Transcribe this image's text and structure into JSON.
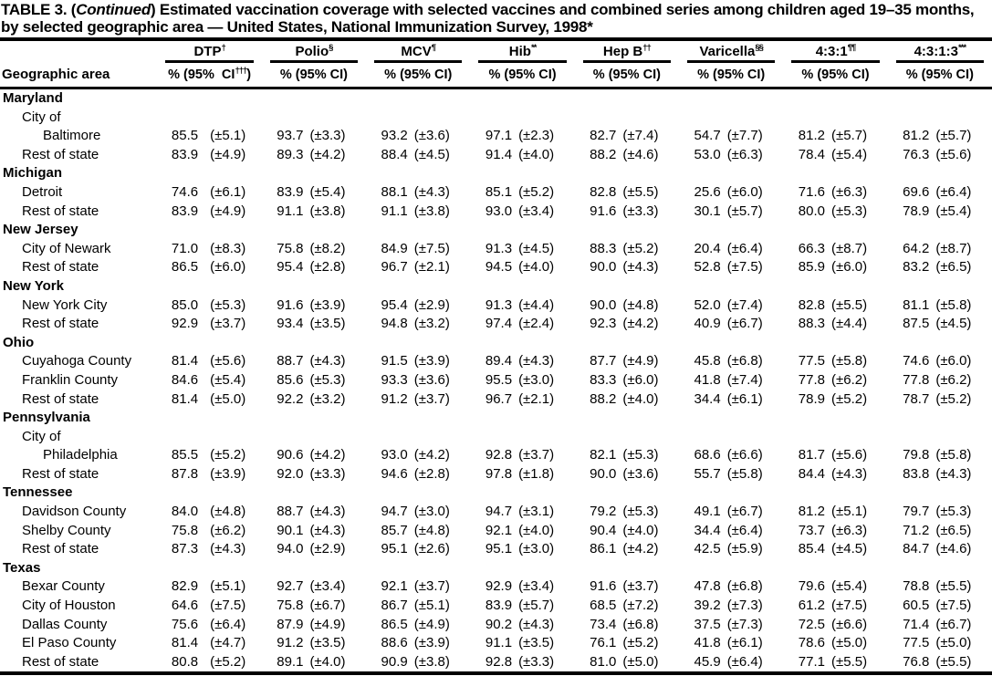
{
  "title": {
    "lead": "TABLE 3. (",
    "continued": "Continued",
    "rest": ") Estimated vaccination coverage with selected vaccines and combined series among children aged 19–35 months, by selected geographic area — United States, National Immunization Survey, 1998*"
  },
  "table": {
    "row_header": "Geographic area",
    "columns": [
      {
        "label": "DTP",
        "sup": "†",
        "sub_pre": "% (95%  CI",
        "sub_sup": "†††",
        "sub_post": ")"
      },
      {
        "label": "Polio",
        "sup": "§",
        "sub_pre": "% (95% CI",
        "sub_sup": "",
        "sub_post": ")"
      },
      {
        "label": "MCV",
        "sup": "¶",
        "sub_pre": "% (95% CI",
        "sub_sup": "",
        "sub_post": ")"
      },
      {
        "label": "Hib",
        "sup": "**",
        "sub_pre": "% (95% CI",
        "sub_sup": "",
        "sub_post": ")"
      },
      {
        "label": "Hep B",
        "sup": "††",
        "sub_pre": "% (95% CI",
        "sub_sup": "",
        "sub_post": ")"
      },
      {
        "label": "Varicella",
        "sup": "§§",
        "sub_pre": "% (95% CI",
        "sub_sup": "",
        "sub_post": ")"
      },
      {
        "label": "4:3:1",
        "sup": "¶¶",
        "sub_pre": "% (95% CI",
        "sub_sup": "",
        "sub_post": ")"
      },
      {
        "label": "4:3:1:3",
        "sup": "***",
        "sub_pre": "% (95% CI",
        "sub_sup": "",
        "sub_post": ")"
      }
    ],
    "rows": [
      {
        "label": "Maryland",
        "type": "state",
        "indent": 0
      },
      {
        "label": "City of",
        "indent": 1
      },
      {
        "label": "Baltimore",
        "indent": 2,
        "values": [
          [
            "85.5",
            "(±5.1)"
          ],
          [
            "93.7",
            "(±3.3)"
          ],
          [
            "93.2",
            "(±3.6)"
          ],
          [
            "97.1",
            "(±2.3)"
          ],
          [
            "82.7",
            "(±7.4)"
          ],
          [
            "54.7",
            "(±7.7)"
          ],
          [
            "81.2",
            "(±5.7)"
          ],
          [
            "81.2",
            "(±5.7)"
          ]
        ]
      },
      {
        "label": "Rest of state",
        "indent": 1,
        "values": [
          [
            "83.9",
            "(±4.9)"
          ],
          [
            "89.3",
            "(±4.2)"
          ],
          [
            "88.4",
            "(±4.5)"
          ],
          [
            "91.4",
            "(±4.0)"
          ],
          [
            "88.2",
            "(±4.6)"
          ],
          [
            "53.0",
            "(±6.3)"
          ],
          [
            "78.4",
            "(±5.4)"
          ],
          [
            "76.3",
            "(±5.6)"
          ]
        ]
      },
      {
        "label": "Michigan",
        "type": "state",
        "indent": 0
      },
      {
        "label": "Detroit",
        "indent": 1,
        "values": [
          [
            "74.6",
            "(±6.1)"
          ],
          [
            "83.9",
            "(±5.4)"
          ],
          [
            "88.1",
            "(±4.3)"
          ],
          [
            "85.1",
            "(±5.2)"
          ],
          [
            "82.8",
            "(±5.5)"
          ],
          [
            "25.6",
            "(±6.0)"
          ],
          [
            "71.6",
            "(±6.3)"
          ],
          [
            "69.6",
            "(±6.4)"
          ]
        ]
      },
      {
        "label": "Rest of state",
        "indent": 1,
        "values": [
          [
            "83.9",
            "(±4.9)"
          ],
          [
            "91.1",
            "(±3.8)"
          ],
          [
            "91.1",
            "(±3.8)"
          ],
          [
            "93.0",
            "(±3.4)"
          ],
          [
            "91.6",
            "(±3.3)"
          ],
          [
            "30.1",
            "(±5.7)"
          ],
          [
            "80.0",
            "(±5.3)"
          ],
          [
            "78.9",
            "(±5.4)"
          ]
        ]
      },
      {
        "label": "New Jersey",
        "type": "state",
        "indent": 0
      },
      {
        "label": "City of Newark",
        "indent": 1,
        "values": [
          [
            "71.0",
            "(±8.3)"
          ],
          [
            "75.8",
            "(±8.2)"
          ],
          [
            "84.9",
            "(±7.5)"
          ],
          [
            "91.3",
            "(±4.5)"
          ],
          [
            "88.3",
            "(±5.2)"
          ],
          [
            "20.4",
            "(±6.4)"
          ],
          [
            "66.3",
            "(±8.7)"
          ],
          [
            "64.2",
            "(±8.7)"
          ]
        ]
      },
      {
        "label": "Rest of state",
        "indent": 1,
        "values": [
          [
            "86.5",
            "(±6.0)"
          ],
          [
            "95.4",
            "(±2.8)"
          ],
          [
            "96.7",
            "(±2.1)"
          ],
          [
            "94.5",
            "(±4.0)"
          ],
          [
            "90.0",
            "(±4.3)"
          ],
          [
            "52.8",
            "(±7.5)"
          ],
          [
            "85.9",
            "(±6.0)"
          ],
          [
            "83.2",
            "(±6.5)"
          ]
        ]
      },
      {
        "label": "New York",
        "type": "state",
        "indent": 0
      },
      {
        "label": "New York City",
        "indent": 1,
        "values": [
          [
            "85.0",
            "(±5.3)"
          ],
          [
            "91.6",
            "(±3.9)"
          ],
          [
            "95.4",
            "(±2.9)"
          ],
          [
            "91.3",
            "(±4.4)"
          ],
          [
            "90.0",
            "(±4.8)"
          ],
          [
            "52.0",
            "(±7.4)"
          ],
          [
            "82.8",
            "(±5.5)"
          ],
          [
            "81.1",
            "(±5.8)"
          ]
        ]
      },
      {
        "label": "Rest of state",
        "indent": 1,
        "values": [
          [
            "92.9",
            "(±3.7)"
          ],
          [
            "93.4",
            "(±3.5)"
          ],
          [
            "94.8",
            "(±3.2)"
          ],
          [
            "97.4",
            "(±2.4)"
          ],
          [
            "92.3",
            "(±4.2)"
          ],
          [
            "40.9",
            "(±6.7)"
          ],
          [
            "88.3",
            "(±4.4)"
          ],
          [
            "87.5",
            "(±4.5)"
          ]
        ]
      },
      {
        "label": "Ohio",
        "type": "state",
        "indent": 0
      },
      {
        "label": "Cuyahoga County",
        "indent": 1,
        "values": [
          [
            "81.4",
            "(±5.6)"
          ],
          [
            "88.7",
            "(±4.3)"
          ],
          [
            "91.5",
            "(±3.9)"
          ],
          [
            "89.4",
            "(±4.3)"
          ],
          [
            "87.7",
            "(±4.9)"
          ],
          [
            "45.8",
            "(±6.8)"
          ],
          [
            "77.5",
            "(±5.8)"
          ],
          [
            "74.6",
            "(±6.0)"
          ]
        ]
      },
      {
        "label": "Franklin County",
        "indent": 1,
        "values": [
          [
            "84.6",
            "(±5.4)"
          ],
          [
            "85.6",
            "(±5.3)"
          ],
          [
            "93.3",
            "(±3.6)"
          ],
          [
            "95.5",
            "(±3.0)"
          ],
          [
            "83.3",
            "(±6.0)"
          ],
          [
            "41.8",
            "(±7.4)"
          ],
          [
            "77.8",
            "(±6.2)"
          ],
          [
            "77.8",
            "(±6.2)"
          ]
        ]
      },
      {
        "label": "Rest of state",
        "indent": 1,
        "values": [
          [
            "81.4",
            "(±5.0)"
          ],
          [
            "92.2",
            "(±3.2)"
          ],
          [
            "91.2",
            "(±3.7)"
          ],
          [
            "96.7",
            "(±2.1)"
          ],
          [
            "88.2",
            "(±4.0)"
          ],
          [
            "34.4",
            "(±6.1)"
          ],
          [
            "78.9",
            "(±5.2)"
          ],
          [
            "78.7",
            "(±5.2)"
          ]
        ]
      },
      {
        "label": "Pennsylvania",
        "type": "state",
        "indent": 0
      },
      {
        "label": "City of",
        "indent": 1
      },
      {
        "label": "Philadelphia",
        "indent": 2,
        "values": [
          [
            "85.5",
            "(±5.2)"
          ],
          [
            "90.6",
            "(±4.2)"
          ],
          [
            "93.0",
            "(±4.2)"
          ],
          [
            "92.8",
            "(±3.7)"
          ],
          [
            "82.1",
            "(±5.3)"
          ],
          [
            "68.6",
            "(±6.6)"
          ],
          [
            "81.7",
            "(±5.6)"
          ],
          [
            "79.8",
            "(±5.8)"
          ]
        ]
      },
      {
        "label": "Rest of state",
        "indent": 1,
        "values": [
          [
            "87.8",
            "(±3.9)"
          ],
          [
            "92.0",
            "(±3.3)"
          ],
          [
            "94.6",
            "(±2.8)"
          ],
          [
            "97.8",
            "(±1.8)"
          ],
          [
            "90.0",
            "(±3.6)"
          ],
          [
            "55.7",
            "(±5.8)"
          ],
          [
            "84.4",
            "(±4.3)"
          ],
          [
            "83.8",
            "(±4.3)"
          ]
        ]
      },
      {
        "label": "Tennessee",
        "type": "state",
        "indent": 0
      },
      {
        "label": "Davidson County",
        "indent": 1,
        "values": [
          [
            "84.0",
            "(±4.8)"
          ],
          [
            "88.7",
            "(±4.3)"
          ],
          [
            "94.7",
            "(±3.0)"
          ],
          [
            "94.7",
            "(±3.1)"
          ],
          [
            "79.2",
            "(±5.3)"
          ],
          [
            "49.1",
            "(±6.7)"
          ],
          [
            "81.2",
            "(±5.1)"
          ],
          [
            "79.7",
            "(±5.3)"
          ]
        ]
      },
      {
        "label": "Shelby County",
        "indent": 1,
        "values": [
          [
            "75.8",
            "(±6.2)"
          ],
          [
            "90.1",
            "(±4.3)"
          ],
          [
            "85.7",
            "(±4.8)"
          ],
          [
            "92.1",
            "(±4.0)"
          ],
          [
            "90.4",
            "(±4.0)"
          ],
          [
            "34.4",
            "(±6.4)"
          ],
          [
            "73.7",
            "(±6.3)"
          ],
          [
            "71.2",
            "(±6.5)"
          ]
        ]
      },
      {
        "label": "Rest of state",
        "indent": 1,
        "values": [
          [
            "87.3",
            "(±4.3)"
          ],
          [
            "94.0",
            "(±2.9)"
          ],
          [
            "95.1",
            "(±2.6)"
          ],
          [
            "95.1",
            "(±3.0)"
          ],
          [
            "86.1",
            "(±4.2)"
          ],
          [
            "42.5",
            "(±5.9)"
          ],
          [
            "85.4",
            "(±4.5)"
          ],
          [
            "84.7",
            "(±4.6)"
          ]
        ]
      },
      {
        "label": "Texas",
        "type": "state",
        "indent": 0
      },
      {
        "label": "Bexar County",
        "indent": 1,
        "values": [
          [
            "82.9",
            "(±5.1)"
          ],
          [
            "92.7",
            "(±3.4)"
          ],
          [
            "92.1",
            "(±3.7)"
          ],
          [
            "92.9",
            "(±3.4)"
          ],
          [
            "91.6",
            "(±3.7)"
          ],
          [
            "47.8",
            "(±6.8)"
          ],
          [
            "79.6",
            "(±5.4)"
          ],
          [
            "78.8",
            "(±5.5)"
          ]
        ]
      },
      {
        "label": "City of Houston",
        "indent": 1,
        "values": [
          [
            "64.6",
            "(±7.5)"
          ],
          [
            "75.8",
            "(±6.7)"
          ],
          [
            "86.7",
            "(±5.1)"
          ],
          [
            "83.9",
            "(±5.7)"
          ],
          [
            "68.5",
            "(±7.2)"
          ],
          [
            "39.2",
            "(±7.3)"
          ],
          [
            "61.2",
            "(±7.5)"
          ],
          [
            "60.5",
            "(±7.5)"
          ]
        ]
      },
      {
        "label": "Dallas County",
        "indent": 1,
        "values": [
          [
            "75.6",
            "(±6.4)"
          ],
          [
            "87.9",
            "(±4.9)"
          ],
          [
            "86.5",
            "(±4.9)"
          ],
          [
            "90.2",
            "(±4.3)"
          ],
          [
            "73.4",
            "(±6.8)"
          ],
          [
            "37.5",
            "(±7.3)"
          ],
          [
            "72.5",
            "(±6.6)"
          ],
          [
            "71.4",
            "(±6.7)"
          ]
        ]
      },
      {
        "label": "El Paso County",
        "indent": 1,
        "values": [
          [
            "81.4",
            "(±4.7)"
          ],
          [
            "91.2",
            "(±3.5)"
          ],
          [
            "88.6",
            "(±3.9)"
          ],
          [
            "91.1",
            "(±3.5)"
          ],
          [
            "76.1",
            "(±5.2)"
          ],
          [
            "41.8",
            "(±6.1)"
          ],
          [
            "78.6",
            "(±5.0)"
          ],
          [
            "77.5",
            "(±5.0)"
          ]
        ]
      },
      {
        "label": "Rest of state",
        "indent": 1,
        "values": [
          [
            "80.8",
            "(±5.2)"
          ],
          [
            "89.1",
            "(±4.0)"
          ],
          [
            "90.9",
            "(±3.8)"
          ],
          [
            "92.8",
            "(±3.3)"
          ],
          [
            "81.0",
            "(±5.0)"
          ],
          [
            "45.9",
            "(±6.4)"
          ],
          [
            "77.1",
            "(±5.5)"
          ],
          [
            "76.8",
            "(±5.5)"
          ]
        ]
      }
    ]
  },
  "colors": {
    "ink": "#000000",
    "paper": "#ffffff"
  }
}
